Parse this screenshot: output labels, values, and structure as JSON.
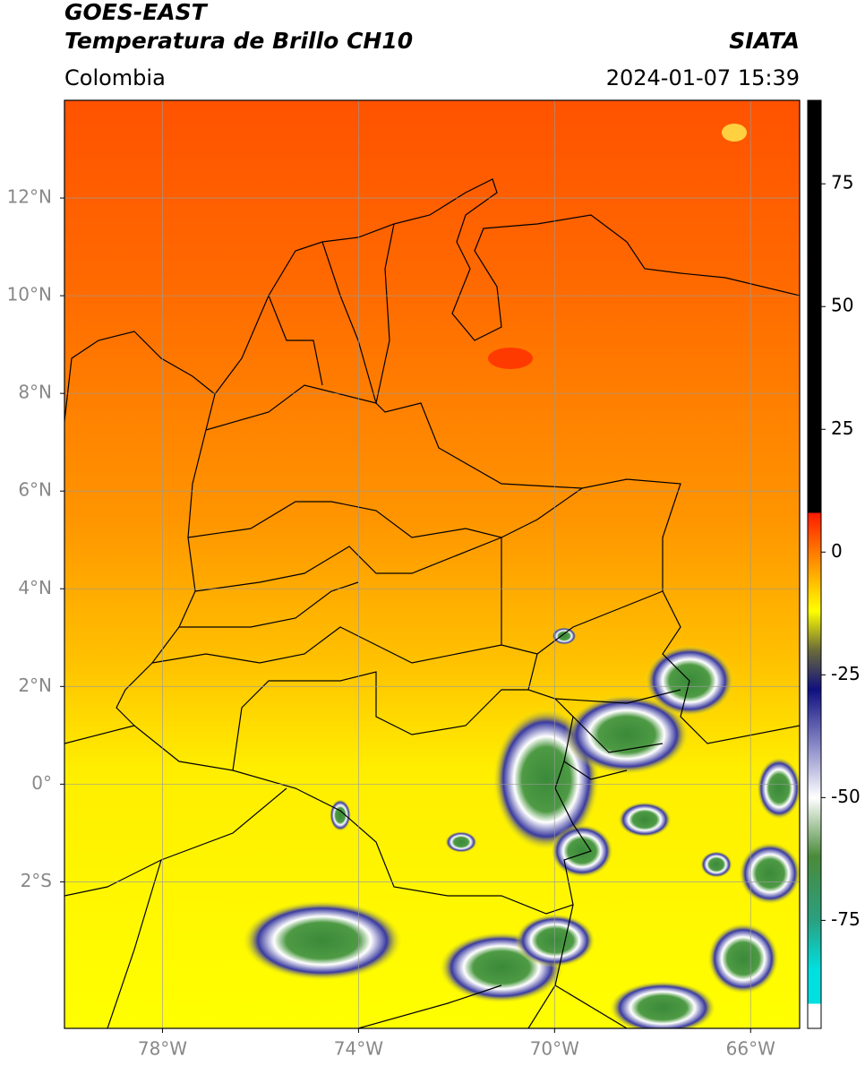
{
  "header": {
    "title": "GOES-EAST",
    "subtitle": "Temperatura de Brillo CH10",
    "source": "SIATA",
    "region": "Colombia",
    "datetime": "2024-01-07 15:39"
  },
  "map": {
    "xlim": [
      -80,
      -65
    ],
    "ylim": [
      -5,
      14
    ],
    "xticks": [
      {
        "value": -78,
        "label": "78°W"
      },
      {
        "value": -74,
        "label": "74°W"
      },
      {
        "value": -70,
        "label": "70°W"
      },
      {
        "value": -66,
        "label": "66°W"
      }
    ],
    "yticks": [
      {
        "value": 12,
        "label": "12°N"
      },
      {
        "value": 10,
        "label": "10°N"
      },
      {
        "value": 8,
        "label": "8°N"
      },
      {
        "value": 6,
        "label": "6°N"
      },
      {
        "value": 4,
        "label": "4°N"
      },
      {
        "value": 2,
        "label": "2°N"
      },
      {
        "value": 0,
        "label": "0°"
      },
      {
        "value": -2,
        "label": "2°S"
      }
    ],
    "grid": true
  },
  "colorbar": {
    "clim": [
      -97,
      92
    ],
    "ticks": [
      75,
      50,
      25,
      0,
      -25,
      -50,
      -75
    ],
    "colormap": [
      {
        "value": 92,
        "color": "#000000"
      },
      {
        "value": 8,
        "color": "#000000"
      },
      {
        "value": 8,
        "color": "#ff1a00"
      },
      {
        "value": 0,
        "color": "#ff7a00"
      },
      {
        "value": -12,
        "color": "#ffff00"
      },
      {
        "value": -20,
        "color": "#6a6a3a"
      },
      {
        "value": -28,
        "color": "#101080"
      },
      {
        "value": -40,
        "color": "#9090cc"
      },
      {
        "value": -50,
        "color": "#ffffff"
      },
      {
        "value": -62,
        "color": "#4a8a3a"
      },
      {
        "value": -75,
        "color": "#2aa080"
      },
      {
        "value": -85,
        "color": "#00e0e0"
      },
      {
        "value": -92,
        "color": "#00e0e0"
      },
      {
        "value": -92,
        "color": "#ffffff"
      },
      {
        "value": -97,
        "color": "#ffffff"
      }
    ]
  }
}
